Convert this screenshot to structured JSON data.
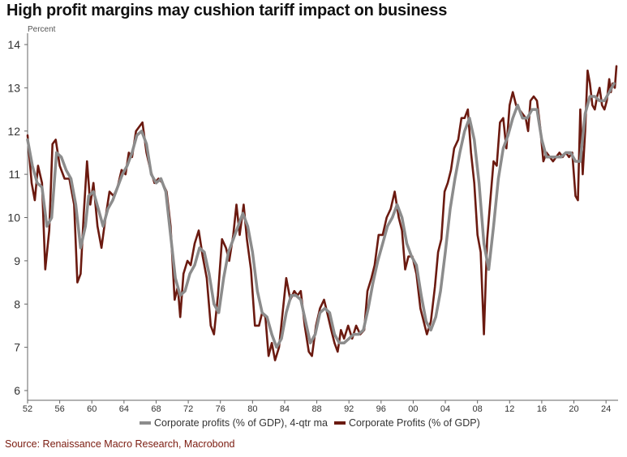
{
  "title": "High profit margins may cushion tariff impact on business",
  "unit_label": "Percent",
  "source": "Source: Renaissance Macro Research, Macrobond",
  "colors": {
    "ma": "#8c8c8c",
    "raw": "#6b1a10",
    "grid": "#e4e4e4",
    "axis": "#555555"
  },
  "chart_data": {
    "type": "line",
    "title": "High profit margins may cushion tariff impact on business",
    "ylabel": "Percent",
    "xlabel": "",
    "xlim": [
      1952,
      2025.5
    ],
    "ylim": [
      6,
      14
    ],
    "grid": false,
    "legend_position": "bottom",
    "x_ticks": [
      52,
      56,
      60,
      64,
      68,
      72,
      76,
      80,
      84,
      88,
      92,
      96,
      0,
      4,
      8,
      12,
      16,
      20,
      24
    ],
    "x_tick_labels": [
      "52",
      "56",
      "60",
      "64",
      "68",
      "72",
      "76",
      "80",
      "84",
      "88",
      "92",
      "96",
      "00",
      "04",
      "08",
      "12",
      "16",
      "20",
      "24"
    ],
    "y_ticks": [
      6,
      7,
      8,
      9,
      10,
      11,
      12,
      13,
      14
    ],
    "y_tick_labels": [
      "6",
      "7",
      "8",
      "9",
      "10",
      "11",
      "12",
      "13",
      "14"
    ],
    "series": [
      {
        "name": "Corporate profits (% of GDP), 4-qtr ma",
        "color": "#8c8c8c",
        "points": [
          [
            1952,
            11.8
          ],
          [
            1952.6,
            11.2
          ],
          [
            1953.2,
            10.8
          ],
          [
            1953.8,
            10.7
          ],
          [
            1954.4,
            9.8
          ],
          [
            1955,
            10.0
          ],
          [
            1955.6,
            11.5
          ],
          [
            1956.2,
            11.4
          ],
          [
            1956.8,
            11.1
          ],
          [
            1957.4,
            10.9
          ],
          [
            1958,
            10.3
          ],
          [
            1958.6,
            9.3
          ],
          [
            1959.2,
            9.8
          ],
          [
            1959.6,
            10.5
          ],
          [
            1960.2,
            10.6
          ],
          [
            1960.8,
            10.2
          ],
          [
            1961.4,
            9.8
          ],
          [
            1962,
            10.2
          ],
          [
            1962.6,
            10.4
          ],
          [
            1963.2,
            10.7
          ],
          [
            1963.8,
            11.0
          ],
          [
            1964.4,
            11.2
          ],
          [
            1965,
            11.5
          ],
          [
            1965.6,
            11.9
          ],
          [
            1966.2,
            12.0
          ],
          [
            1966.8,
            11.7
          ],
          [
            1967.4,
            11.0
          ],
          [
            1968,
            10.8
          ],
          [
            1968.6,
            10.9
          ],
          [
            1969.2,
            10.6
          ],
          [
            1969.8,
            9.6
          ],
          [
            1970.4,
            8.6
          ],
          [
            1971,
            8.2
          ],
          [
            1971.6,
            8.3
          ],
          [
            1972.2,
            8.7
          ],
          [
            1972.8,
            8.9
          ],
          [
            1973.4,
            9.3
          ],
          [
            1974,
            9.2
          ],
          [
            1974.6,
            8.7
          ],
          [
            1975.2,
            8.0
          ],
          [
            1975.8,
            7.8
          ],
          [
            1976.4,
            8.6
          ],
          [
            1977,
            9.2
          ],
          [
            1977.6,
            9.5
          ],
          [
            1978.2,
            9.8
          ],
          [
            1978.8,
            10.1
          ],
          [
            1979.4,
            9.8
          ],
          [
            1980,
            9.2
          ],
          [
            1980.6,
            8.3
          ],
          [
            1981.2,
            7.8
          ],
          [
            1981.8,
            7.7
          ],
          [
            1982.4,
            7.3
          ],
          [
            1983,
            7.0
          ],
          [
            1983.6,
            7.2
          ],
          [
            1984.2,
            7.8
          ],
          [
            1984.8,
            8.2
          ],
          [
            1985.4,
            8.2
          ],
          [
            1986,
            8.1
          ],
          [
            1986.6,
            7.6
          ],
          [
            1987.2,
            7.1
          ],
          [
            1987.8,
            7.3
          ],
          [
            1988.4,
            7.8
          ],
          [
            1989,
            7.9
          ],
          [
            1989.6,
            7.8
          ],
          [
            1990.2,
            7.3
          ],
          [
            1990.8,
            7.1
          ],
          [
            1991.4,
            7.1
          ],
          [
            1992,
            7.2
          ],
          [
            1992.6,
            7.3
          ],
          [
            1993.2,
            7.3
          ],
          [
            1993.8,
            7.4
          ],
          [
            1994.4,
            7.9
          ],
          [
            1995,
            8.5
          ],
          [
            1995.6,
            9.0
          ],
          [
            1996.2,
            9.4
          ],
          [
            1996.8,
            9.8
          ],
          [
            1997.4,
            10.0
          ],
          [
            1998,
            10.3
          ],
          [
            1998.6,
            10.0
          ],
          [
            1999.2,
            9.4
          ],
          [
            1999.8,
            9.1
          ],
          [
            2000.4,
            8.9
          ],
          [
            2001,
            8.2
          ],
          [
            2001.6,
            7.6
          ],
          [
            2002.2,
            7.4
          ],
          [
            2002.8,
            7.7
          ],
          [
            2003.4,
            8.3
          ],
          [
            2004,
            9.2
          ],
          [
            2004.6,
            10.2
          ],
          [
            2005.2,
            10.9
          ],
          [
            2005.8,
            11.5
          ],
          [
            2006.4,
            12.0
          ],
          [
            2007,
            12.3
          ],
          [
            2007.6,
            11.8
          ],
          [
            2008.2,
            10.8
          ],
          [
            2008.8,
            9.4
          ],
          [
            2009.4,
            8.8
          ],
          [
            2010,
            9.8
          ],
          [
            2010.6,
            10.9
          ],
          [
            2011.2,
            11.6
          ],
          [
            2011.8,
            11.9
          ],
          [
            2012.4,
            12.3
          ],
          [
            2013,
            12.6
          ],
          [
            2013.6,
            12.3
          ],
          [
            2014.2,
            12.3
          ],
          [
            2014.8,
            12.5
          ],
          [
            2015.4,
            12.5
          ],
          [
            2016,
            11.8
          ],
          [
            2016.6,
            11.4
          ],
          [
            2017.2,
            11.4
          ],
          [
            2017.8,
            11.4
          ],
          [
            2018.4,
            11.4
          ],
          [
            2019,
            11.5
          ],
          [
            2019.6,
            11.5
          ],
          [
            2020.2,
            11.3
          ],
          [
            2020.8,
            11.3
          ],
          [
            2021.4,
            12.4
          ],
          [
            2022,
            12.8
          ],
          [
            2022.6,
            12.8
          ],
          [
            2023.2,
            12.7
          ],
          [
            2023.8,
            12.7
          ],
          [
            2024.4,
            12.9
          ],
          [
            2025,
            13.1
          ]
        ]
      },
      {
        "name": "Corporate Profits (% of GDP)",
        "color": "#6b1a10",
        "points": [
          [
            1952,
            11.9
          ],
          [
            1952.5,
            10.8
          ],
          [
            1952.9,
            10.4
          ],
          [
            1953.3,
            11.2
          ],
          [
            1953.8,
            10.8
          ],
          [
            1954.2,
            8.8
          ],
          [
            1954.7,
            9.7
          ],
          [
            1955.1,
            11.7
          ],
          [
            1955.5,
            11.8
          ],
          [
            1956,
            11.2
          ],
          [
            1956.6,
            10.9
          ],
          [
            1957.2,
            10.9
          ],
          [
            1957.8,
            10.3
          ],
          [
            1958.2,
            8.5
          ],
          [
            1958.6,
            8.7
          ],
          [
            1959,
            10.1
          ],
          [
            1959.4,
            11.3
          ],
          [
            1959.8,
            10.3
          ],
          [
            1960.2,
            10.8
          ],
          [
            1960.7,
            9.8
          ],
          [
            1961.2,
            9.3
          ],
          [
            1961.7,
            10.0
          ],
          [
            1962.2,
            10.6
          ],
          [
            1962.7,
            10.5
          ],
          [
            1963.2,
            10.7
          ],
          [
            1963.7,
            11.1
          ],
          [
            1964.2,
            11.0
          ],
          [
            1964.6,
            11.5
          ],
          [
            1965,
            11.4
          ],
          [
            1965.5,
            12.0
          ],
          [
            1965.9,
            12.1
          ],
          [
            1966.3,
            12.2
          ],
          [
            1966.8,
            11.5
          ],
          [
            1967.3,
            11.1
          ],
          [
            1967.8,
            10.8
          ],
          [
            1968.3,
            10.9
          ],
          [
            1968.8,
            10.8
          ],
          [
            1969.3,
            10.6
          ],
          [
            1969.8,
            9.8
          ],
          [
            1970.3,
            8.1
          ],
          [
            1970.7,
            8.4
          ],
          [
            1971,
            7.7
          ],
          [
            1971.4,
            8.7
          ],
          [
            1971.9,
            9.0
          ],
          [
            1972.3,
            8.9
          ],
          [
            1972.8,
            9.4
          ],
          [
            1973.3,
            9.7
          ],
          [
            1973.8,
            9.1
          ],
          [
            1974.3,
            8.6
          ],
          [
            1974.8,
            7.5
          ],
          [
            1975.2,
            7.3
          ],
          [
            1975.7,
            8.2
          ],
          [
            1976.2,
            9.5
          ],
          [
            1976.7,
            9.3
          ],
          [
            1977.1,
            9.0
          ],
          [
            1977.6,
            9.6
          ],
          [
            1978,
            10.3
          ],
          [
            1978.4,
            9.6
          ],
          [
            1978.9,
            10.3
          ],
          [
            1979.3,
            9.5
          ],
          [
            1979.8,
            8.8
          ],
          [
            1980.3,
            7.5
          ],
          [
            1980.8,
            7.5
          ],
          [
            1981.2,
            7.8
          ],
          [
            1981.6,
            7.7
          ],
          [
            1982,
            6.8
          ],
          [
            1982.4,
            7.1
          ],
          [
            1982.8,
            6.7
          ],
          [
            1983.3,
            7.0
          ],
          [
            1983.8,
            7.9
          ],
          [
            1984.2,
            8.6
          ],
          [
            1984.7,
            8.1
          ],
          [
            1985.2,
            8.3
          ],
          [
            1985.6,
            8.2
          ],
          [
            1986,
            8.3
          ],
          [
            1986.5,
            7.5
          ],
          [
            1987,
            6.9
          ],
          [
            1987.4,
            6.8
          ],
          [
            1987.9,
            7.5
          ],
          [
            1988.4,
            7.9
          ],
          [
            1988.9,
            8.1
          ],
          [
            1989.3,
            7.8
          ],
          [
            1989.8,
            7.4
          ],
          [
            1990.2,
            7.1
          ],
          [
            1990.6,
            6.9
          ],
          [
            1991,
            7.4
          ],
          [
            1991.4,
            7.2
          ],
          [
            1991.9,
            7.5
          ],
          [
            1992.4,
            7.2
          ],
          [
            1992.9,
            7.5
          ],
          [
            1993.4,
            7.3
          ],
          [
            1993.9,
            7.4
          ],
          [
            1994.3,
            8.3
          ],
          [
            1994.8,
            8.6
          ],
          [
            1995.2,
            8.9
          ],
          [
            1995.7,
            9.6
          ],
          [
            1996.2,
            9.6
          ],
          [
            1996.7,
            10.0
          ],
          [
            1997.2,
            10.2
          ],
          [
            1997.7,
            10.6
          ],
          [
            1998.2,
            10.0
          ],
          [
            1998.6,
            9.7
          ],
          [
            1999,
            8.8
          ],
          [
            1999.4,
            9.1
          ],
          [
            1999.9,
            9.1
          ],
          [
            2000.4,
            8.7
          ],
          [
            2000.9,
            7.9
          ],
          [
            2001.3,
            7.6
          ],
          [
            2001.7,
            7.3
          ],
          [
            2002.2,
            7.6
          ],
          [
            2002.7,
            8.4
          ],
          [
            2003.1,
            9.2
          ],
          [
            2003.5,
            9.5
          ],
          [
            2003.9,
            10.6
          ],
          [
            2004.3,
            10.8
          ],
          [
            2004.7,
            11.1
          ],
          [
            2005.1,
            11.6
          ],
          [
            2005.6,
            11.8
          ],
          [
            2006,
            12.3
          ],
          [
            2006.4,
            12.3
          ],
          [
            2006.8,
            12.5
          ],
          [
            2007.2,
            11.5
          ],
          [
            2007.6,
            10.8
          ],
          [
            2008,
            9.6
          ],
          [
            2008.4,
            9.2
          ],
          [
            2008.8,
            7.3
          ],
          [
            2009.2,
            9.5
          ],
          [
            2009.6,
            10.4
          ],
          [
            2010,
            11.3
          ],
          [
            2010.4,
            11.2
          ],
          [
            2010.8,
            12.2
          ],
          [
            2011.2,
            12.3
          ],
          [
            2011.6,
            11.6
          ],
          [
            2012,
            12.6
          ],
          [
            2012.4,
            12.9
          ],
          [
            2012.8,
            12.6
          ],
          [
            2013.2,
            12.5
          ],
          [
            2013.6,
            12.4
          ],
          [
            2014,
            12.3
          ],
          [
            2014.3,
            12.0
          ],
          [
            2014.6,
            12.7
          ],
          [
            2015,
            12.8
          ],
          [
            2015.4,
            12.7
          ],
          [
            2015.8,
            12.1
          ],
          [
            2016.2,
            11.3
          ],
          [
            2016.6,
            11.5
          ],
          [
            2017,
            11.4
          ],
          [
            2017.4,
            11.3
          ],
          [
            2017.8,
            11.4
          ],
          [
            2018.2,
            11.5
          ],
          [
            2018.6,
            11.4
          ],
          [
            2019,
            11.5
          ],
          [
            2019.4,
            11.4
          ],
          [
            2019.8,
            11.5
          ],
          [
            2020.2,
            10.5
          ],
          [
            2020.5,
            10.4
          ],
          [
            2020.8,
            12.5
          ],
          [
            2021.1,
            11.0
          ],
          [
            2021.4,
            12.0
          ],
          [
            2021.7,
            13.4
          ],
          [
            2022,
            13.1
          ],
          [
            2022.3,
            12.6
          ],
          [
            2022.6,
            12.5
          ],
          [
            2022.9,
            12.8
          ],
          [
            2023.2,
            13.0
          ],
          [
            2023.5,
            12.6
          ],
          [
            2023.8,
            12.5
          ],
          [
            2024.1,
            12.7
          ],
          [
            2024.4,
            13.2
          ],
          [
            2024.6,
            12.9
          ],
          [
            2024.8,
            13.1
          ],
          [
            2025.1,
            13.0
          ],
          [
            2025.3,
            13.5
          ]
        ]
      }
    ]
  }
}
